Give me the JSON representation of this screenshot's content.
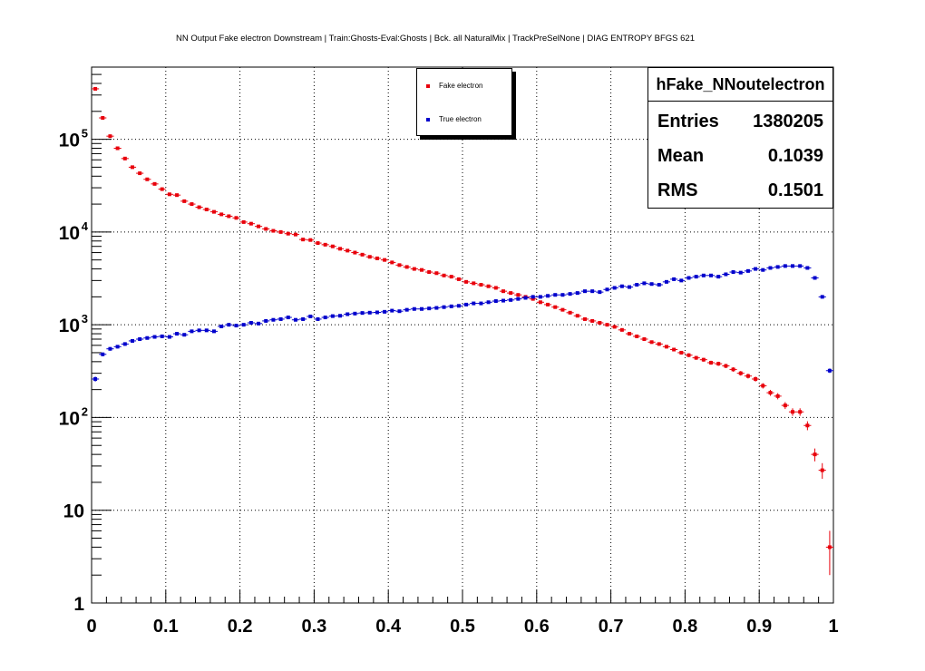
{
  "title": "NN Output Fake electron Downstream | Train:Ghosts-Eval:Ghosts | Bck. all NaturalMix | TrackPreSelNone | DIAG ENTROPY BFGS 621",
  "legend": [
    {
      "label": "Fake electron",
      "color": "#e8000b"
    },
    {
      "label": "True electron",
      "color": "#0000cc"
    }
  ],
  "stats": {
    "name": "hFake_NNoutelectron",
    "rows": [
      {
        "key": "Entries",
        "value": "1380205"
      },
      {
        "key": "Mean",
        "value": "0.1039"
      },
      {
        "key": "RMS",
        "value": "0.1501"
      }
    ]
  },
  "chart_data": {
    "type": "scatter",
    "xlim": [
      0,
      1
    ],
    "ylim": [
      1,
      600000
    ],
    "yscale": "log",
    "grid": true,
    "legend_position": "top-center",
    "xticks": [
      "0",
      "0.1",
      "0.2",
      "0.3",
      "0.4",
      "0.5",
      "0.6",
      "0.7",
      "0.8",
      "0.9",
      "1"
    ],
    "yticks": [
      {
        "value": 1,
        "label": "1"
      },
      {
        "value": 10,
        "label": "10"
      },
      {
        "value": 100,
        "label": "10",
        "sup": "2"
      },
      {
        "value": 1000,
        "label": "10",
        "sup": "3"
      },
      {
        "value": 10000,
        "label": "10",
        "sup": "4"
      },
      {
        "value": 100000,
        "label": "10",
        "sup": "5"
      }
    ],
    "x": [
      0.005,
      0.015,
      0.025,
      0.035,
      0.045,
      0.055,
      0.065,
      0.075,
      0.085,
      0.095,
      0.105,
      0.115,
      0.125,
      0.135,
      0.145,
      0.155,
      0.165,
      0.175,
      0.185,
      0.195,
      0.205,
      0.215,
      0.225,
      0.235,
      0.245,
      0.255,
      0.265,
      0.275,
      0.285,
      0.295,
      0.305,
      0.315,
      0.325,
      0.335,
      0.345,
      0.355,
      0.365,
      0.375,
      0.385,
      0.395,
      0.405,
      0.415,
      0.425,
      0.435,
      0.445,
      0.455,
      0.465,
      0.475,
      0.485,
      0.495,
      0.505,
      0.515,
      0.525,
      0.535,
      0.545,
      0.555,
      0.565,
      0.575,
      0.585,
      0.595,
      0.605,
      0.615,
      0.625,
      0.635,
      0.645,
      0.655,
      0.665,
      0.675,
      0.685,
      0.695,
      0.705,
      0.715,
      0.725,
      0.735,
      0.745,
      0.755,
      0.765,
      0.775,
      0.785,
      0.795,
      0.805,
      0.815,
      0.825,
      0.835,
      0.845,
      0.855,
      0.865,
      0.875,
      0.885,
      0.895,
      0.905,
      0.915,
      0.925,
      0.935,
      0.945,
      0.955,
      0.965,
      0.975,
      0.985,
      0.995
    ],
    "series": [
      {
        "name": "Fake electron",
        "color": "#e8000b",
        "values": [
          350000,
          170000,
          108000,
          80000,
          62000,
          50000,
          43000,
          37000,
          33000,
          29000,
          25500,
          25000,
          21500,
          20000,
          18500,
          17500,
          16500,
          15500,
          14800,
          14200,
          12800,
          12300,
          11500,
          10800,
          10300,
          10000,
          9600,
          9400,
          8300,
          8200,
          7600,
          7300,
          7000,
          6600,
          6300,
          6000,
          5700,
          5400,
          5200,
          5000,
          4700,
          4400,
          4200,
          4000,
          3900,
          3700,
          3600,
          3400,
          3300,
          3100,
          2900,
          2800,
          2700,
          2600,
          2500,
          2300,
          2200,
          2100,
          2000,
          1900,
          1750,
          1650,
          1550,
          1450,
          1350,
          1250,
          1150,
          1100,
          1050,
          1000,
          950,
          880,
          800,
          750,
          700,
          650,
          620,
          580,
          540,
          500,
          470,
          440,
          420,
          390,
          380,
          360,
          330,
          300,
          280,
          260,
          220,
          185,
          170,
          135,
          115,
          115,
          82,
          40,
          27,
          4
        ]
      },
      {
        "name": "True electron",
        "color": "#0000cc",
        "values": [
          260,
          480,
          550,
          580,
          620,
          670,
          700,
          720,
          740,
          750,
          740,
          800,
          780,
          850,
          870,
          870,
          850,
          960,
          1000,
          980,
          1000,
          1050,
          1030,
          1100,
          1130,
          1150,
          1200,
          1130,
          1150,
          1230,
          1150,
          1200,
          1240,
          1250,
          1300,
          1320,
          1340,
          1350,
          1360,
          1380,
          1420,
          1400,
          1450,
          1480,
          1480,
          1500,
          1520,
          1550,
          1580,
          1600,
          1650,
          1700,
          1700,
          1750,
          1800,
          1820,
          1850,
          1900,
          1950,
          2000,
          2000,
          2050,
          2100,
          2100,
          2150,
          2200,
          2300,
          2300,
          2250,
          2400,
          2500,
          2600,
          2550,
          2700,
          2800,
          2750,
          2700,
          2900,
          3100,
          3000,
          3200,
          3300,
          3400,
          3400,
          3300,
          3500,
          3700,
          3650,
          3800,
          4000,
          3900,
          4100,
          4200,
          4300,
          4300,
          4300,
          4100,
          3200,
          2000,
          320
        ]
      }
    ]
  }
}
